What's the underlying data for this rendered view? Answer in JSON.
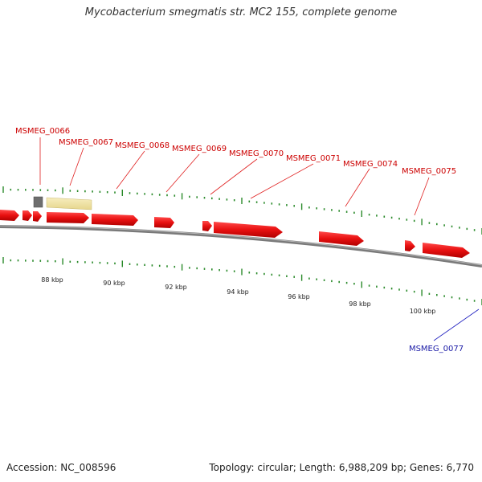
{
  "title": "Mycobacterium smegmatis str. MC2 155, complete genome",
  "footer": {
    "accession": "Accession: NC_008596",
    "summary": "Topology: circular; Length: 6,988,209 bp; Genes: 6,770"
  },
  "colors": {
    "forward_gene": "#e81010",
    "reverse_gene": "#1a1aa6",
    "backbone": "#808080",
    "tick": "#2a8a2a",
    "highlight": "#efe2a2",
    "pseudo": "#6e6e6e"
  },
  "scale": {
    "unit": "kbp",
    "labels": [
      "88 kbp",
      "90 kbp",
      "92 kbp",
      "94 kbp",
      "96 kbp",
      "98 kbp",
      "100 kbp"
    ]
  },
  "forward_labels": [
    "MSMEG_0066",
    "MSMEG_0067",
    "MSMEG_0068",
    "MSMEG_0069",
    "MSMEG_0070",
    "MSMEG_0071",
    "MSMEG_0074",
    "MSMEG_0075"
  ],
  "reverse_labels": [
    "MSMEG_0077"
  ]
}
